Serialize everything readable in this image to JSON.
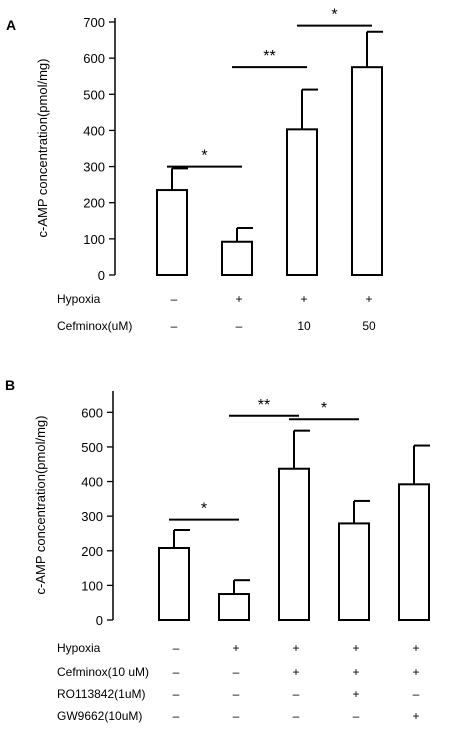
{
  "chart_data": [
    {
      "type": "bar",
      "panel_label": "A",
      "ylabel": "c-AMP concentration(pmol/mg)",
      "ylim": [
        0,
        700
      ],
      "yticks": [
        0,
        100,
        200,
        300,
        400,
        500,
        600,
        700
      ],
      "values": [
        235,
        92,
        403,
        575
      ],
      "errors": [
        60,
        38,
        110,
        98
      ],
      "bar_fill": "#ffffff",
      "bar_edge": "#000000",
      "condition_rows": [
        {
          "label": "Hypoxia",
          "values": [
            "–",
            "+",
            "+",
            "+"
          ]
        },
        {
          "label": "Cefminox(uM)",
          "values": [
            "–",
            "–",
            "10",
            "50"
          ]
        }
      ],
      "significance": [
        {
          "from": 0,
          "to": 1,
          "y": 300,
          "text": "*"
        },
        {
          "from": 1,
          "to": 2,
          "y": 575,
          "text": "**"
        },
        {
          "from": 2,
          "to": 3,
          "y": 690,
          "text": "*"
        }
      ]
    },
    {
      "type": "bar",
      "panel_label": "B",
      "ylabel": "c-AMP concentration(pmol/mg)",
      "ylim": [
        0,
        650
      ],
      "yticks": [
        0,
        100,
        200,
        300,
        400,
        500,
        600
      ],
      "values": [
        208,
        75,
        437,
        279,
        392
      ],
      "errors": [
        52,
        40,
        110,
        65,
        112
      ],
      "bar_fill": "#ffffff",
      "bar_edge": "#000000",
      "condition_rows": [
        {
          "label": "Hypoxia",
          "values": [
            "–",
            "+",
            "+",
            "+",
            "+"
          ]
        },
        {
          "label": "Cefminox(10 uM)",
          "values": [
            "–",
            "–",
            "+",
            "+",
            "+"
          ]
        },
        {
          "label": "RO113842(1uM)",
          "values": [
            "–",
            "–",
            "–",
            "+",
            "–"
          ]
        },
        {
          "label": "GW9662(10uM)",
          "values": [
            "–",
            "–",
            "–",
            "–",
            "+"
          ]
        }
      ],
      "significance": [
        {
          "from": 0,
          "to": 1,
          "y": 290,
          "text": "*"
        },
        {
          "from": 1,
          "to": 2,
          "y": 590,
          "text": "**"
        },
        {
          "from": 2,
          "to": 3,
          "y": 580,
          "text": "*"
        }
      ]
    }
  ]
}
